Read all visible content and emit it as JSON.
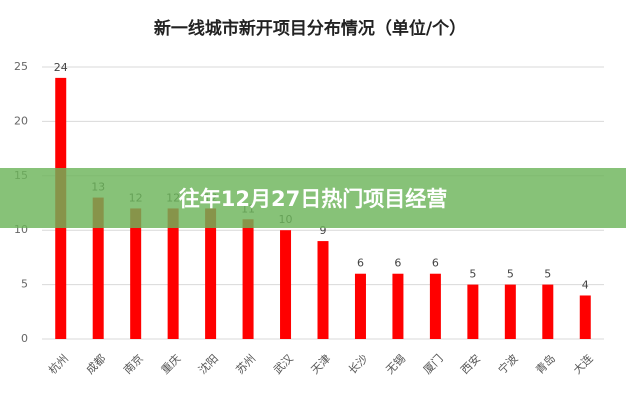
{
  "chart_data": {
    "type": "bar",
    "title": "新一线城市新开项目分布情况（单位/个）",
    "categories": [
      "杭州",
      "成都",
      "南京",
      "重庆",
      "沈阳",
      "苏州",
      "武汉",
      "天津",
      "长沙",
      "无锡",
      "厦门",
      "西安",
      "宁波",
      "青岛",
      "大连"
    ],
    "values": [
      24,
      13,
      12,
      12,
      12,
      11,
      10,
      9,
      6,
      6,
      6,
      5,
      5,
      5,
      4
    ],
    "color": "#ff0000",
    "ylim": [
      0,
      25
    ],
    "yticks": [
      0,
      5,
      10,
      15,
      20,
      25
    ],
    "grid": true
  },
  "banner": "往年12月27日热门项目经营"
}
